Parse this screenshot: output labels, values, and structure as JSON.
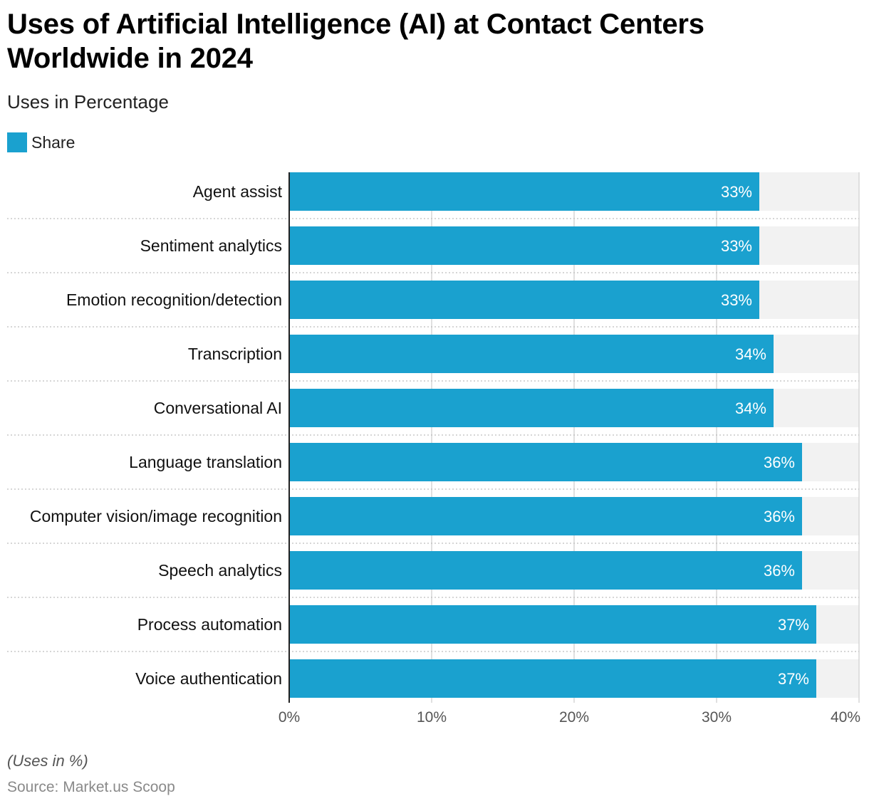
{
  "title": "Uses of Artificial Intelligence (AI) at Contact Centers Worldwide in 2024",
  "subtitle": "Uses in Percentage",
  "legend": {
    "label": "Share",
    "color": "#1aa1cf"
  },
  "footnote": "(Uses in %)",
  "source": "Source: Market.us Scoop",
  "chart_data": {
    "type": "bar",
    "orientation": "horizontal",
    "title": "Uses of Artificial Intelligence (AI) at Contact Centers Worldwide in 2024",
    "xlabel": "",
    "ylabel": "",
    "xlim": [
      0,
      40
    ],
    "xticks": [
      0,
      10,
      20,
      30,
      40
    ],
    "xtick_labels": [
      "0%",
      "10%",
      "20%",
      "30%",
      "40%"
    ],
    "categories": [
      "Agent assist",
      "Sentiment analytics",
      "Emotion recognition/detection",
      "Transcription",
      "Conversational AI",
      "Language translation",
      "Computer vision/image recognition",
      "Speech analytics",
      "Process automation",
      "Voice authentication"
    ],
    "series": [
      {
        "name": "Share",
        "color": "#1aa1cf",
        "values": [
          33,
          33,
          33,
          34,
          34,
          36,
          36,
          36,
          37,
          37
        ],
        "labels": [
          "33%",
          "33%",
          "33%",
          "34%",
          "34%",
          "36%",
          "36%",
          "36%",
          "37%",
          "37%"
        ]
      }
    ],
    "grid": true,
    "legend_position": "top-left"
  }
}
